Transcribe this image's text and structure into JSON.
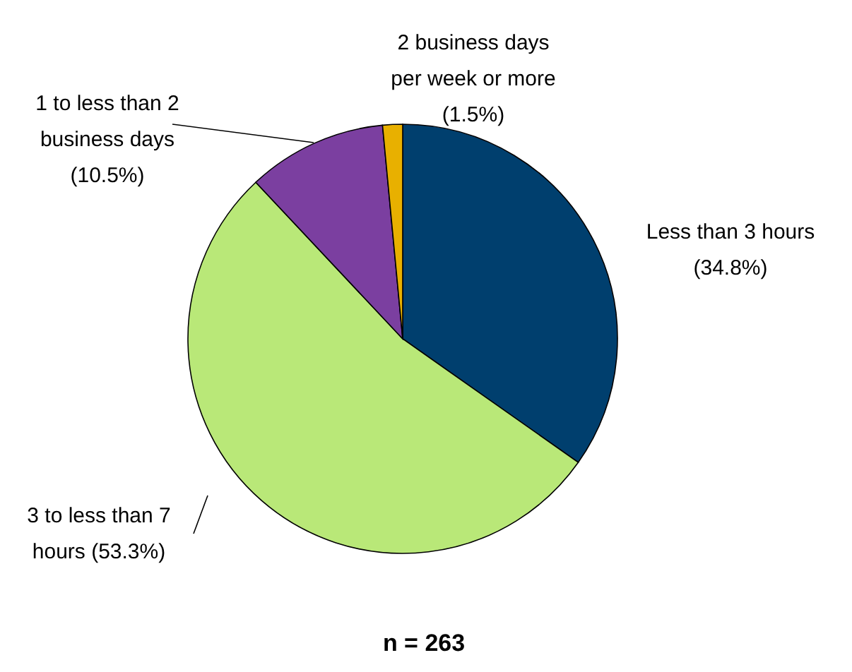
{
  "chart_data": {
    "type": "pie",
    "categories": [
      "Less than 3 hours",
      "3 to less than 7 hours",
      "1 to less than 2 business days",
      "2 business days per week or more"
    ],
    "values": [
      34.8,
      53.3,
      10.5,
      1.5
    ],
    "colors": [
      "#003f6e",
      "#b9e878",
      "#7b3fa0",
      "#e8b000"
    ],
    "value_labels": [
      "(34.8%)",
      "(53.3%)",
      "(10.5%)",
      "(1.5%)"
    ],
    "annotations": [
      "n = 263"
    ]
  }
}
